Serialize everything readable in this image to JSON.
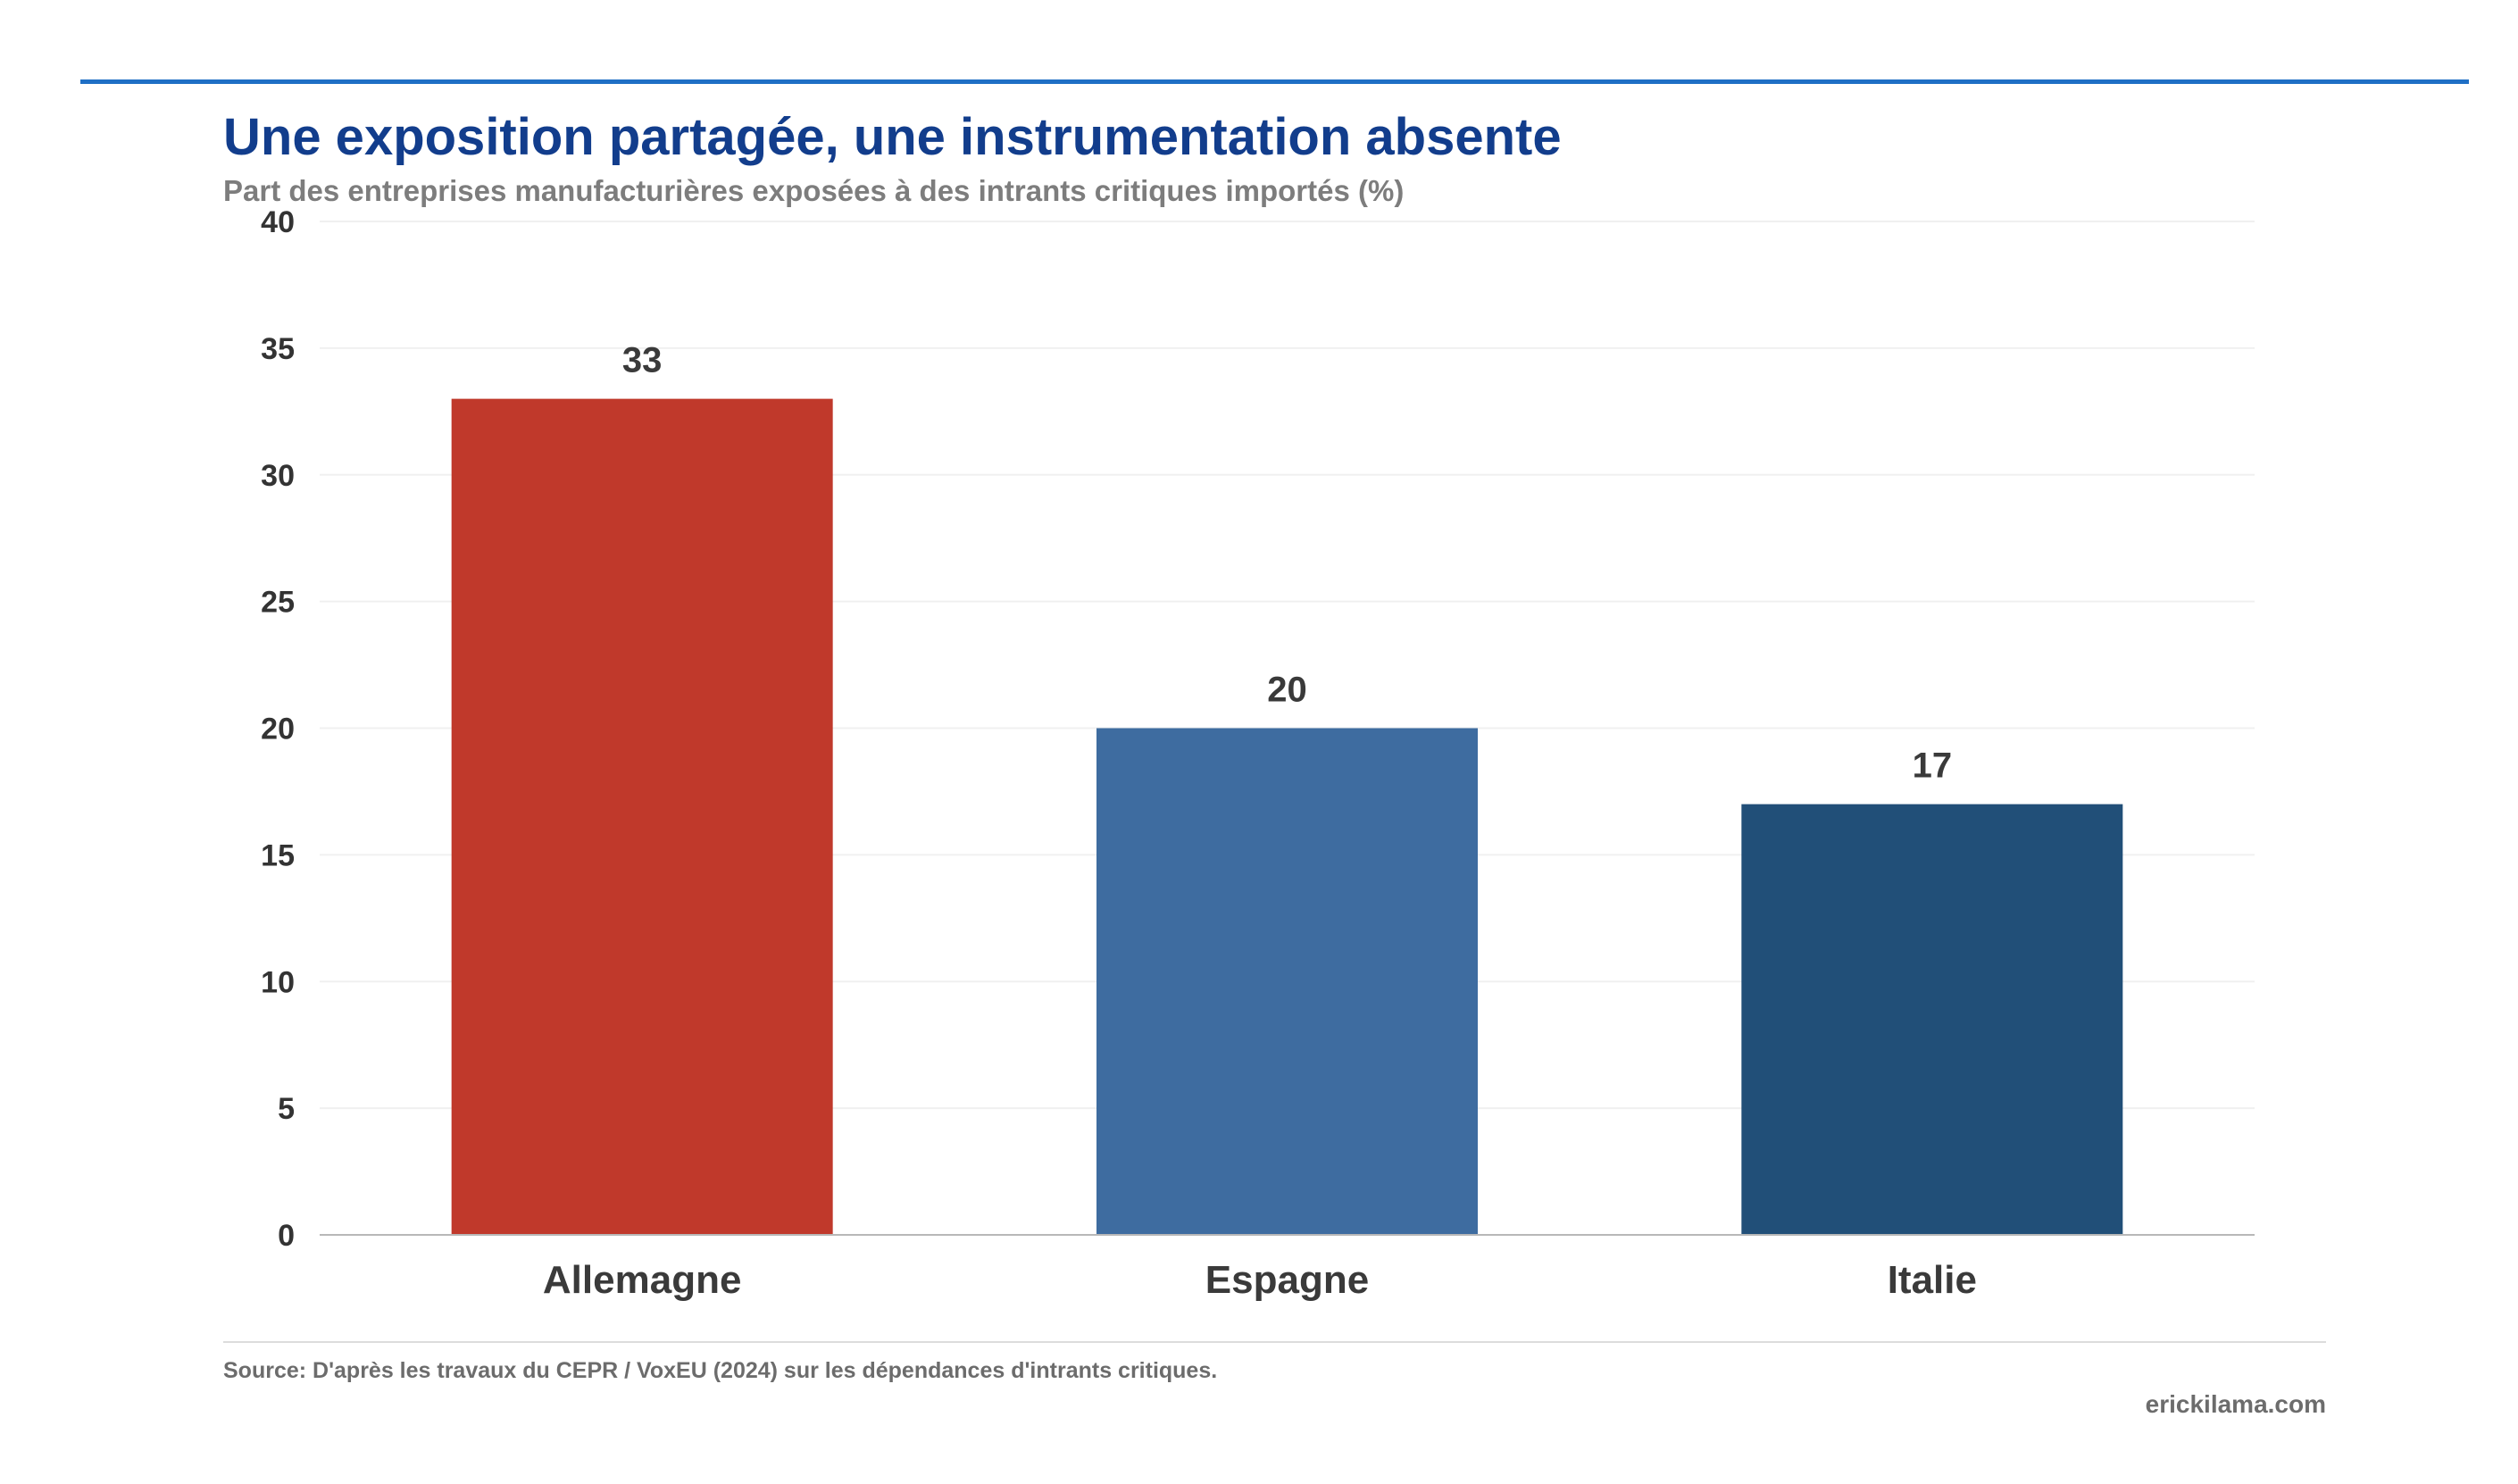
{
  "header": {
    "title": "Une exposition partagée, une instrumentation absente",
    "subtitle": "Part des entreprises manufacturières exposées à des intrants critiques importés (%)"
  },
  "footer": {
    "source": "Source: D'après les travaux du CEPR / VoxEU (2024) sur les dépendances d'intrants critiques.",
    "credit": "erickilama.com"
  },
  "colors": {
    "accent_rule": "#1f6fc5",
    "title": "#123d8c",
    "gridline": "#f0f0f0",
    "axis": "#b8b8b8"
  },
  "chart_data": {
    "type": "bar",
    "title": "Une exposition partagée, une instrumentation absente",
    "subtitle": "Part des entreprises manufacturières exposées à des intrants critiques importés (%)",
    "xlabel": "",
    "ylabel": "",
    "categories": [
      "Allemagne",
      "Espagne",
      "Italie"
    ],
    "values": [
      33,
      20,
      17
    ],
    "bar_colors": [
      "#c0392b",
      "#3e6ca0",
      "#214f78"
    ],
    "data_labels": [
      "33",
      "20",
      "17"
    ],
    "ylim": [
      0,
      40
    ],
    "yticks": [
      0,
      5,
      10,
      15,
      20,
      25,
      30,
      35,
      40
    ],
    "grid": true,
    "legend": "none"
  }
}
